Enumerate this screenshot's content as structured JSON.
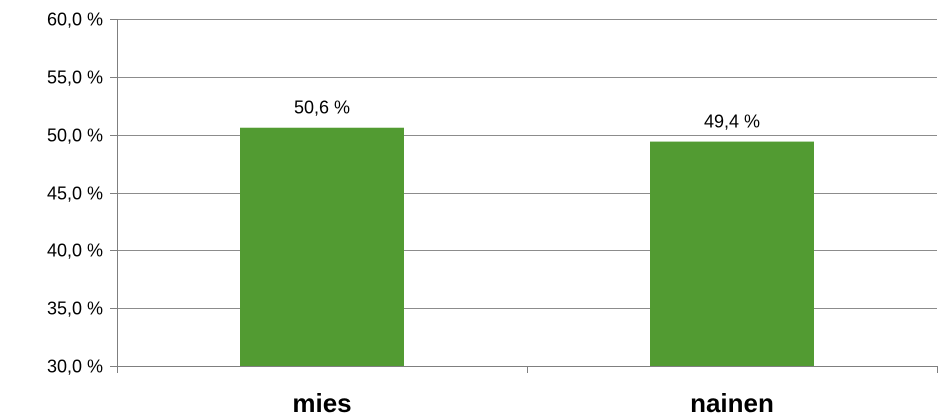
{
  "chart_data": {
    "type": "bar",
    "categories": [
      "mies",
      "nainen"
    ],
    "values": [
      50.6,
      49.4
    ],
    "value_labels": [
      "50,6 %",
      "49,4 %"
    ],
    "ylim": [
      30,
      60
    ],
    "yticks": [
      30,
      35,
      40,
      45,
      50,
      55,
      60
    ],
    "ytick_labels": [
      "30,0 %",
      "35,0 %",
      "40,0 %",
      "45,0 %",
      "50,0 %",
      "55,0 %",
      "60,0 %"
    ],
    "grid": true,
    "legend": false,
    "title": "",
    "xlabel": "",
    "ylabel": "",
    "bar_color": "#529b32"
  }
}
